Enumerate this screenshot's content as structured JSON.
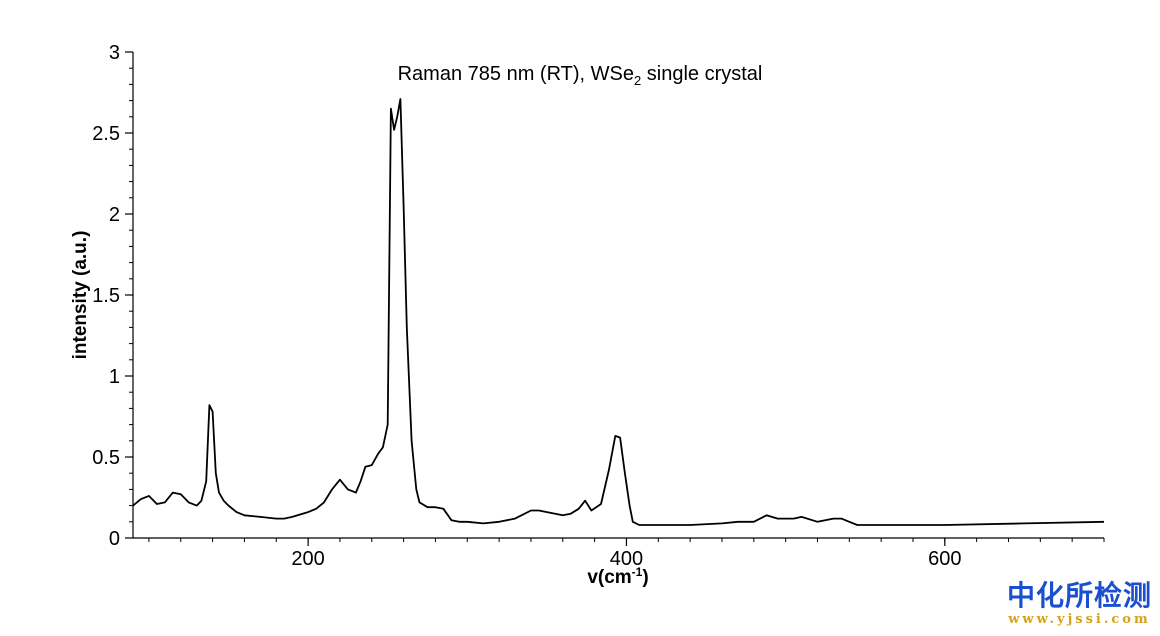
{
  "chart_data": {
    "type": "line",
    "title": {
      "pre": "Raman 785 nm (RT), WSe",
      "sub": "2",
      "post": " single crystal"
    },
    "xlabel": {
      "pre": "v(cm",
      "sup": "-1",
      "post": ")"
    },
    "ylabel": "intensity (a.u.)",
    "xlim": [
      90,
      700
    ],
    "ylim": [
      0,
      3
    ],
    "xticks": [
      200,
      400,
      600
    ],
    "yticks": [
      0,
      0.5,
      1,
      1.5,
      2,
      2.5,
      3
    ],
    "ytick_labels": [
      "0",
      "0.5",
      "1",
      "1.5",
      "2",
      "2.5",
      "3"
    ],
    "grid": false,
    "series": [
      {
        "color": "#000000",
        "x": [
          90,
          95,
          100,
          105,
          110,
          115,
          120,
          125,
          130,
          133,
          136,
          138,
          140,
          142,
          144,
          147,
          150,
          155,
          160,
          170,
          180,
          185,
          190,
          200,
          205,
          210,
          215,
          220,
          225,
          230,
          233,
          236,
          240,
          244,
          247,
          250,
          252,
          254,
          256,
          258,
          260,
          262,
          265,
          268,
          270,
          275,
          280,
          285,
          290,
          295,
          300,
          310,
          320,
          330,
          340,
          345,
          350,
          360,
          365,
          370,
          374,
          378,
          384,
          389,
          393,
          396,
          399,
          402,
          404,
          408,
          412,
          420,
          440,
          460,
          470,
          480,
          488,
          495,
          505,
          510,
          520,
          530,
          535,
          540,
          545,
          560,
          600,
          650,
          700
        ],
        "y": [
          0.2,
          0.24,
          0.26,
          0.21,
          0.22,
          0.28,
          0.27,
          0.22,
          0.2,
          0.23,
          0.35,
          0.82,
          0.78,
          0.4,
          0.28,
          0.23,
          0.2,
          0.16,
          0.14,
          0.13,
          0.12,
          0.12,
          0.13,
          0.16,
          0.18,
          0.22,
          0.3,
          0.36,
          0.3,
          0.28,
          0.35,
          0.44,
          0.45,
          0.52,
          0.56,
          0.7,
          2.65,
          2.52,
          2.6,
          2.71,
          2.05,
          1.3,
          0.6,
          0.3,
          0.22,
          0.19,
          0.19,
          0.18,
          0.11,
          0.1,
          0.1,
          0.09,
          0.1,
          0.12,
          0.17,
          0.17,
          0.16,
          0.14,
          0.15,
          0.18,
          0.23,
          0.17,
          0.21,
          0.42,
          0.63,
          0.62,
          0.4,
          0.2,
          0.1,
          0.08,
          0.08,
          0.08,
          0.08,
          0.09,
          0.1,
          0.1,
          0.14,
          0.12,
          0.12,
          0.13,
          0.1,
          0.12,
          0.12,
          0.1,
          0.08,
          0.08,
          0.08,
          0.09,
          0.1
        ]
      }
    ]
  },
  "watermark": {
    "text": "中化所检测",
    "url": "www.yjssi.com"
  }
}
